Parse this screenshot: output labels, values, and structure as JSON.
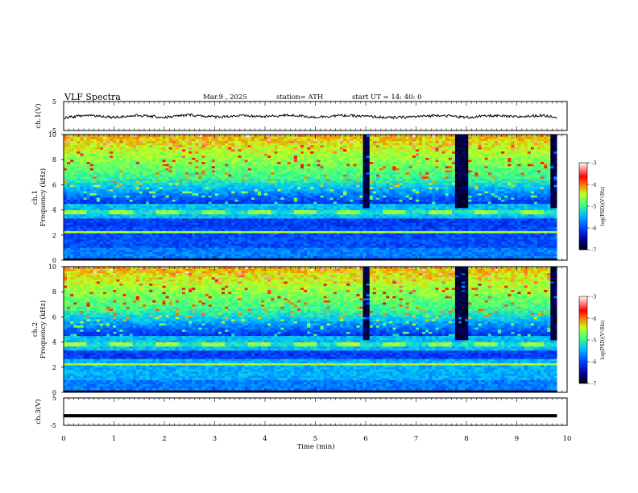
{
  "header": {
    "title": "VLF  Spectra",
    "date": "Mar.9  , 2025",
    "station": "station= ATH",
    "start": "start  UT  =   14: 40: 0"
  },
  "chart_data": [
    {
      "type": "line",
      "panel": "ch1-waveform",
      "ylabel": "ch.1(V)",
      "ylim": [
        -5,
        5
      ],
      "yticks": [
        "5",
        "-5"
      ],
      "x": [
        0,
        0.5,
        1,
        1.5,
        2,
        2.5,
        3,
        3.5,
        4,
        4.5,
        5,
        5.5,
        6,
        6.5,
        7,
        7.5,
        8,
        8.5,
        9,
        9.5,
        9.8
      ],
      "values": [
        -0.6,
        0.3,
        -0.4,
        0.2,
        -0.5,
        0.4,
        -0.3,
        0.1,
        -0.2,
        0.3,
        -0.4,
        0.2,
        -0.1,
        -0.6,
        -0.2,
        0.3,
        -0.5,
        0.1,
        -0.3,
        0.2,
        -0.4
      ]
    },
    {
      "type": "heatmap",
      "panel": "ch1-spectrogram",
      "ylabel": "ch.1\nFrequency  (kHz)",
      "ylim": [
        0,
        10
      ],
      "yticks": [
        "0",
        "2",
        "4",
        "6",
        "8",
        "10"
      ],
      "colorbar": {
        "label": "log(PSD)(V²/Hz)",
        "range": [
          -7,
          -3
        ],
        "ticks": [
          "-3",
          "-4",
          "-5",
          "-6",
          "-7"
        ]
      }
    },
    {
      "type": "heatmap",
      "panel": "ch2-spectrogram",
      "ylabel": "ch.2\nFrequency  (kHz)",
      "ylim": [
        0,
        10
      ],
      "yticks": [
        "0",
        "2",
        "4",
        "6",
        "8",
        "10"
      ],
      "colorbar": {
        "label": "log(PSD)(V²/Hz)",
        "range": [
          -7,
          -3
        ],
        "ticks": [
          "-3",
          "-4",
          "-5",
          "-6",
          "-7"
        ]
      }
    },
    {
      "type": "line",
      "panel": "ch3-waveform",
      "ylabel": "ch.3(V)",
      "ylim": [
        -5,
        5
      ],
      "yticks": [
        "5",
        "-5"
      ],
      "x": [
        0,
        9.8
      ],
      "values": [
        -1.5,
        -1.5
      ]
    }
  ],
  "xaxis": {
    "label": "Time  (min)",
    "range": [
      0,
      10
    ],
    "ticks": [
      "0",
      "1",
      "2",
      "3",
      "4",
      "5",
      "6",
      "7",
      "8",
      "9",
      "10"
    ]
  },
  "colors": {
    "background": "#1a3fd0",
    "quiet": "#2b6bff",
    "active": "#44e08a",
    "storm": "#c8f040",
    "gap": "#000000"
  }
}
